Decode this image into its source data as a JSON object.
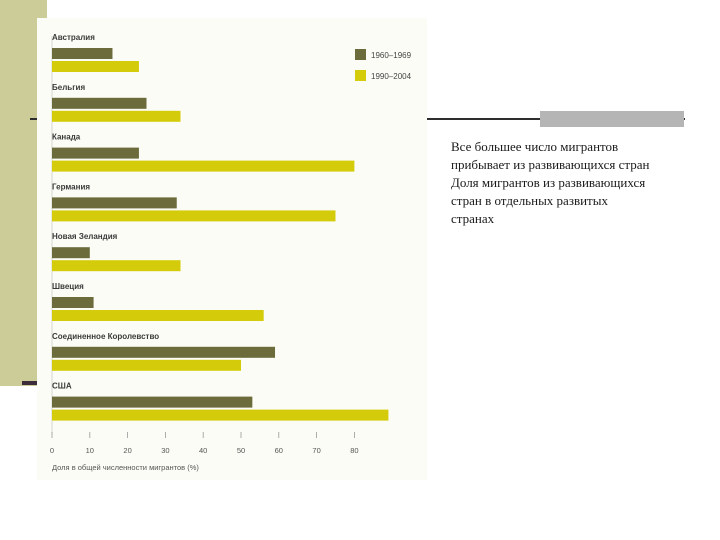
{
  "caption": {
    "lines": [
      "Все большее число мигрантов",
      "прибывает из развивающихся стран",
      "Доля мигрантов из развивающихся",
      "стран в отдельных  развитых",
      "странах"
    ]
  },
  "colors": {
    "series_1960": "#6b6b3b",
    "series_1990": "#d4cc0a",
    "stripe": "#cccc99",
    "accent_box": "#b5b5b5"
  },
  "chart_data": {
    "type": "bar",
    "orientation": "horizontal",
    "categories": [
      "Австралия",
      "Бельгия",
      "Канада",
      "Германия",
      "Новая Зеландия",
      "Швеция",
      "Соединенное Королевство",
      "США"
    ],
    "series": [
      {
        "name": "1960–1969",
        "values": [
          16,
          25,
          23,
          33,
          10,
          11,
          59,
          53
        ]
      },
      {
        "name": "1990–2004",
        "values": [
          23,
          34,
          80,
          75,
          34,
          56,
          50,
          89
        ]
      }
    ],
    "xlim": [
      0,
      90
    ],
    "xticks": [
      0,
      10,
      20,
      30,
      40,
      50,
      60,
      70,
      80
    ],
    "xlabel": "Доля в общей численности мигрантов (%)",
    "legend": {
      "position": "top-right"
    }
  }
}
